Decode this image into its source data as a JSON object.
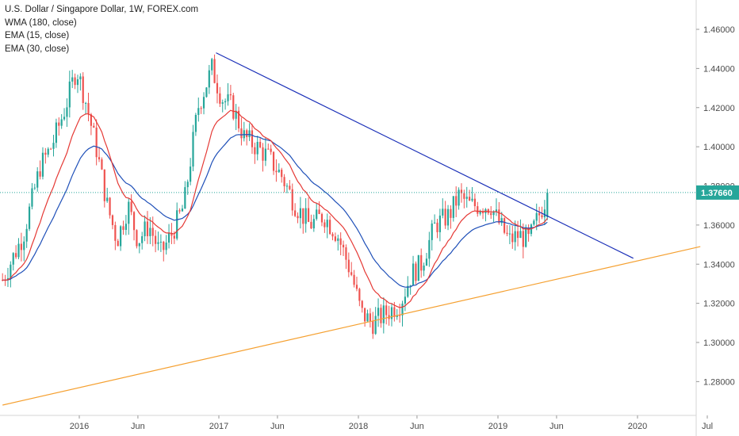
{
  "legend": {
    "symbol": "U.S. Dollar / Singapore Dollar, 1W, FOREX.com",
    "wma": "WMA (180, close)",
    "ema15": "EMA (15, close)",
    "ema30": "EMA (30, close)"
  },
  "chart_data": {
    "type": "candlestick",
    "title": "U.S. Dollar / Singapore Dollar, 1W, FOREX.com",
    "y_ticks": [
      1.28,
      1.3,
      1.32,
      1.34,
      1.36,
      1.38,
      1.4,
      1.42,
      1.44,
      1.46
    ],
    "y_tick_labels": [
      "1.28000",
      "1.30000",
      "1.32000",
      "1.34000",
      "1.36000",
      "1.38000",
      "1.40000",
      "1.42000",
      "1.44000",
      "1.46000"
    ],
    "ylim": [
      1.266,
      1.476
    ],
    "x_ticks": [
      {
        "label": "2016",
        "t": 2016.0
      },
      {
        "label": "Jun",
        "t": 2016.42
      },
      {
        "label": "2017",
        "t": 2017.0
      },
      {
        "label": "Jun",
        "t": 2017.42
      },
      {
        "label": "2018",
        "t": 2018.0
      },
      {
        "label": "Jun",
        "t": 2018.42
      },
      {
        "label": "2019",
        "t": 2019.0
      },
      {
        "label": "Jun",
        "t": 2019.42
      },
      {
        "label": "2020",
        "t": 2020.0
      },
      {
        "label": "Jul",
        "t": 2020.5
      }
    ],
    "last_price": 1.3766,
    "last_price_label": "1.37660",
    "series_colors": {
      "up": "#26a69a",
      "down": "#ef5350",
      "ema15": "#e53935",
      "ema30": "#1e4fb8",
      "trend_down": "#1a2fb8",
      "trend_up": "#f5a030",
      "last_line": "#26a69a",
      "price_tag": "#26a69a"
    },
    "anchors": [
      [
        2015.45,
        1.332
      ],
      [
        2015.6,
        1.355
      ],
      [
        2015.72,
        1.39
      ],
      [
        2015.8,
        1.4
      ],
      [
        2015.9,
        1.42
      ],
      [
        2015.98,
        1.44
      ],
      [
        2016.04,
        1.425
      ],
      [
        2016.12,
        1.4
      ],
      [
        2016.2,
        1.37
      ],
      [
        2016.27,
        1.352
      ],
      [
        2016.35,
        1.37
      ],
      [
        2016.42,
        1.352
      ],
      [
        2016.5,
        1.36
      ],
      [
        2016.58,
        1.345
      ],
      [
        2016.66,
        1.355
      ],
      [
        2016.75,
        1.37
      ],
      [
        2016.85,
        1.42
      ],
      [
        2016.95,
        1.44
      ],
      [
        2017.02,
        1.425
      ],
      [
        2017.1,
        1.42
      ],
      [
        2017.18,
        1.405
      ],
      [
        2017.27,
        1.4
      ],
      [
        2017.35,
        1.395
      ],
      [
        2017.45,
        1.385
      ],
      [
        2017.55,
        1.37
      ],
      [
        2017.65,
        1.36
      ],
      [
        2017.75,
        1.365
      ],
      [
        2017.85,
        1.355
      ],
      [
        2017.95,
        1.335
      ],
      [
        2018.02,
        1.315
      ],
      [
        2018.1,
        1.31
      ],
      [
        2018.2,
        1.315
      ],
      [
        2018.3,
        1.32
      ],
      [
        2018.38,
        1.335
      ],
      [
        2018.45,
        1.34
      ],
      [
        2018.55,
        1.36
      ],
      [
        2018.65,
        1.365
      ],
      [
        2018.72,
        1.375
      ],
      [
        2018.8,
        1.37
      ],
      [
        2018.88,
        1.37
      ],
      [
        2018.95,
        1.37
      ],
      [
        2019.0,
        1.362
      ],
      [
        2019.08,
        1.352
      ],
      [
        2019.15,
        1.355
      ],
      [
        2019.22,
        1.352
      ],
      [
        2019.3,
        1.366
      ],
      [
        2019.36,
        1.377
      ]
    ],
    "trendlines": [
      {
        "name": "down",
        "from": [
          2016.98,
          1.448
        ],
        "to": [
          2019.97,
          1.343
        ]
      },
      {
        "name": "up",
        "from": [
          2015.45,
          1.268
        ],
        "to": [
          2020.45,
          1.349
        ]
      }
    ]
  }
}
